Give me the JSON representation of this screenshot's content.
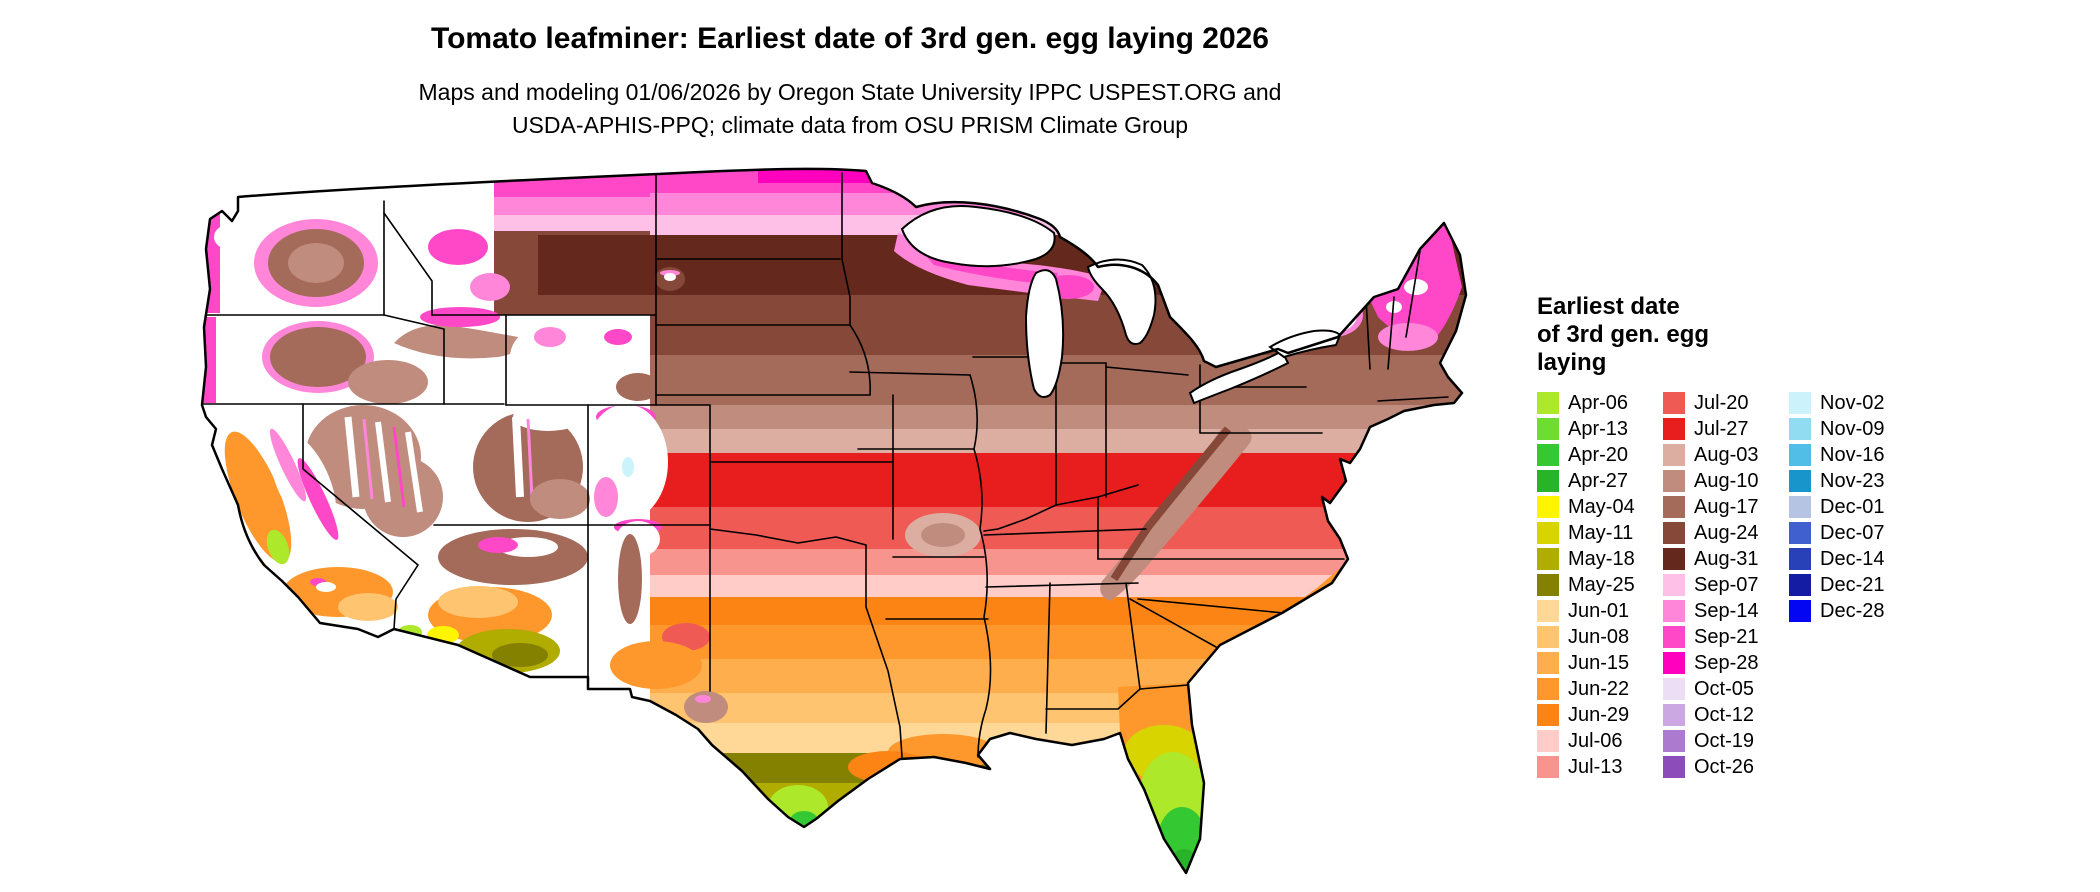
{
  "page": {
    "background": "#FFFFFF"
  },
  "header": {
    "title": "Tomato leafminer: Earliest date of 3rd gen. egg laying 2026",
    "subtitle_line1": "Maps and modeling 01/06/2026 by Oregon State University IPPC USPEST.ORG and",
    "subtitle_line2": "USDA-APHIS-PPQ; climate data from OSU PRISM Climate Group"
  },
  "map": {
    "region": "Continental United States",
    "no_data_color": "#FFFFFF",
    "boundary_color": "#000000",
    "lakes_color": "#FFFFFF"
  },
  "legend": {
    "title_lines": [
      "Earliest date",
      "of 3rd gen. egg",
      "laying"
    ],
    "columns": [
      {
        "items": [
          {
            "label": "Apr-06",
            "color": "#ADE82A"
          },
          {
            "label": "Apr-13",
            "color": "#6EDC30"
          },
          {
            "label": "Apr-20",
            "color": "#34C832"
          },
          {
            "label": "Apr-27",
            "color": "#28B428"
          },
          {
            "label": "May-04",
            "color": "#FFF500"
          },
          {
            "label": "May-11",
            "color": "#D8D400"
          },
          {
            "label": "May-18",
            "color": "#B0AC00"
          },
          {
            "label": "May-25",
            "color": "#848000"
          },
          {
            "label": "Jun-01",
            "color": "#FFD898"
          },
          {
            "label": "Jun-08",
            "color": "#FFC470"
          },
          {
            "label": "Jun-15",
            "color": "#FFAE4E"
          },
          {
            "label": "Jun-22",
            "color": "#FF982C"
          },
          {
            "label": "Jun-29",
            "color": "#FC8414"
          },
          {
            "label": "Jul-06",
            "color": "#FFCCC8"
          },
          {
            "label": "Jul-13",
            "color": "#F8948E"
          }
        ]
      },
      {
        "items": [
          {
            "label": "Jul-20",
            "color": "#F05A55"
          },
          {
            "label": "Jul-27",
            "color": "#E81E1E"
          },
          {
            "label": "Aug-03",
            "color": "#DCAEA2"
          },
          {
            "label": "Aug-10",
            "color": "#C08C7E"
          },
          {
            "label": "Aug-17",
            "color": "#A46A5A"
          },
          {
            "label": "Aug-24",
            "color": "#864838"
          },
          {
            "label": "Aug-31",
            "color": "#64281C"
          },
          {
            "label": "Sep-07",
            "color": "#FFC0E8"
          },
          {
            "label": "Sep-14",
            "color": "#FF86D8"
          },
          {
            "label": "Sep-21",
            "color": "#FF48C8"
          },
          {
            "label": "Sep-28",
            "color": "#FF00BE"
          },
          {
            "label": "Oct-05",
            "color": "#ECDEF4"
          },
          {
            "label": "Oct-12",
            "color": "#CCA8E2"
          },
          {
            "label": "Oct-19",
            "color": "#AC7ACE"
          },
          {
            "label": "Oct-26",
            "color": "#8C4CBA"
          }
        ]
      },
      {
        "items": [
          {
            "label": "Nov-02",
            "color": "#CCF2FC"
          },
          {
            "label": "Nov-09",
            "color": "#92DCF2"
          },
          {
            "label": "Nov-16",
            "color": "#50BEE6"
          },
          {
            "label": "Nov-23",
            "color": "#1896CC"
          },
          {
            "label": "Dec-01",
            "color": "#B6C4E4"
          },
          {
            "label": "Dec-07",
            "color": "#4060D0"
          },
          {
            "label": "Dec-14",
            "color": "#2840B8"
          },
          {
            "label": "Dec-21",
            "color": "#141CA4"
          },
          {
            "label": "Dec-28",
            "color": "#0206F2"
          }
        ]
      }
    ]
  }
}
